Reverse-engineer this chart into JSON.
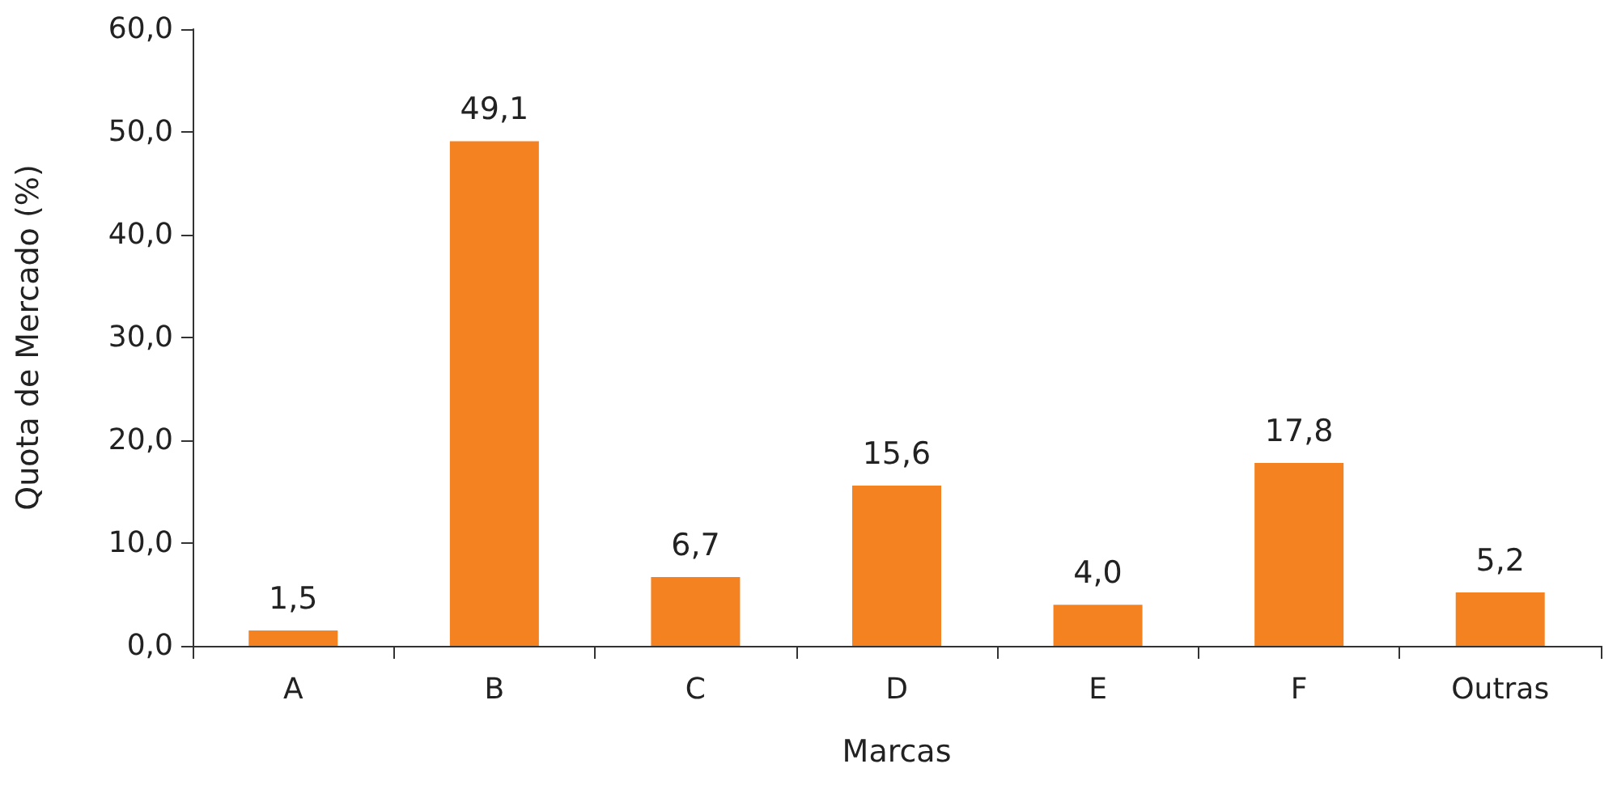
{
  "chart_data": {
    "type": "bar",
    "xlabel": "Marcas",
    "ylabel": "Quota de Mercado (%)",
    "categories": [
      "A",
      "B",
      "C",
      "D",
      "E",
      "F",
      "Outras"
    ],
    "values": [
      1.5,
      49.1,
      6.7,
      15.6,
      4.0,
      17.8,
      5.2
    ],
    "value_labels": [
      "1,5",
      "49,1",
      "6,7",
      "15,6",
      "4,0",
      "17,8",
      "5,2"
    ],
    "color": "#f58220",
    "ylim": [
      0,
      60
    ],
    "yticks": [
      {
        "value": 0,
        "label": "0,0"
      },
      {
        "value": 10,
        "label": "10,0"
      },
      {
        "value": 20,
        "label": "20,0"
      },
      {
        "value": 30,
        "label": "30,0"
      },
      {
        "value": 40,
        "label": "40,0"
      },
      {
        "value": 50,
        "label": "50,0"
      },
      {
        "value": 60,
        "label": "60,0"
      }
    ],
    "grid": false
  }
}
